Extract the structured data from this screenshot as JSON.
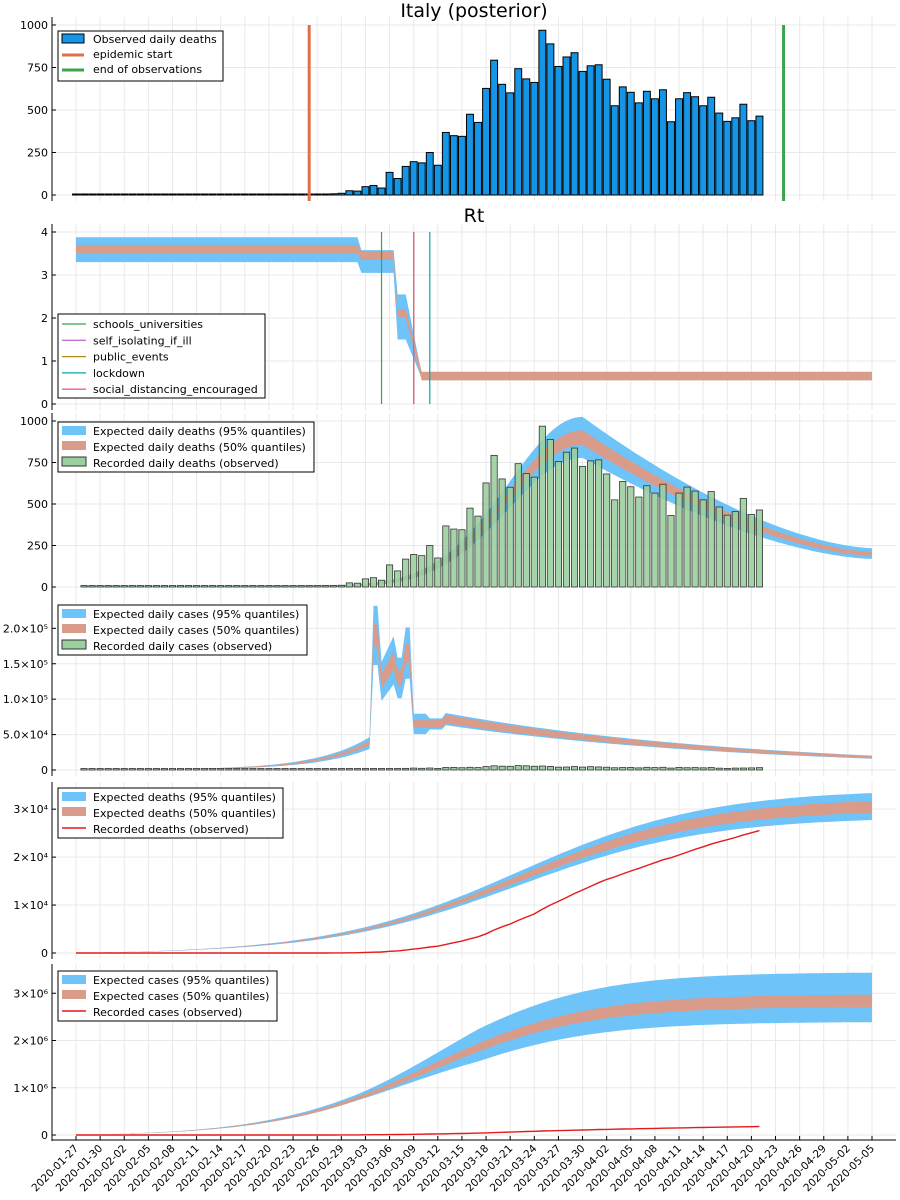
{
  "chart_data": [
    {
      "type": "bar",
      "title": "Italy (posterior)",
      "ylim": [
        0,
        1000
      ],
      "yticks": [
        0,
        250,
        500,
        750,
        1000
      ],
      "ytick_labels": [
        "0",
        "250",
        "500",
        "750",
        "1000"
      ],
      "grid": true,
      "legend_position": "top-left",
      "legend": [
        "Observed daily deaths",
        "epidemic start",
        "end of observations"
      ],
      "x_start": "2020-01-27",
      "series": [
        {
          "name": "Observed daily deaths",
          "values": [
            0,
            0,
            0,
            0,
            0,
            0,
            0,
            0,
            0,
            0,
            0,
            0,
            0,
            0,
            0,
            0,
            0,
            0,
            0,
            0,
            0,
            0,
            0,
            0,
            0,
            0,
            0,
            0,
            0,
            1,
            2,
            1,
            7,
            10,
            25,
            23,
            49,
            56,
            41,
            133,
            97,
            168,
            196,
            189,
            250,
            175,
            368,
            349,
            345,
            475,
            427,
            627,
            793,
            651,
            601,
            743,
            683,
            662,
            969,
            889,
            756,
            812,
            837,
            727,
            760,
            766,
            681,
            525,
            636,
            604,
            542,
            610,
            566,
            619,
            431,
            566,
            602,
            578,
            525,
            575,
            482,
            433,
            454,
            534,
            437,
            464
          ]
        },
        {
          "name": "epidemic start",
          "date": "2020-02-25"
        },
        {
          "name": "end of observations",
          "date": "2020-04-24"
        }
      ]
    },
    {
      "type": "line",
      "title": "Rt",
      "ylim": [
        0,
        4
      ],
      "yticks": [
        0,
        1,
        2,
        3,
        4
      ],
      "ytick_labels": [
        "0",
        "1",
        "2",
        "3",
        "4"
      ],
      "grid": true,
      "legend_position": "left",
      "interventions": [
        {
          "name": "schools_universities",
          "date": "2020-03-05",
          "color": "#3da44e"
        },
        {
          "name": "self_isolating_if_ill",
          "date": "2020-03-09",
          "color": "#c271d2"
        },
        {
          "name": "public_events",
          "date": "2020-03-09",
          "color": "#ac8d18"
        },
        {
          "name": "lockdown",
          "date": "2020-03-11",
          "color": "#00a9ad"
        },
        {
          "name": "social_distancing_encouraged",
          "date": "2020-03-09",
          "color": "#ed5d92"
        }
      ],
      "rt": {
        "pre": 3.6,
        "pre_lo95": 3.3,
        "pre_hi95": 3.88,
        "post": 0.65,
        "post_lo95": 0.6,
        "post_hi95": 0.7
      }
    },
    {
      "type": "bar",
      "ylim": [
        0,
        1000
      ],
      "yticks": [
        0,
        250,
        500,
        750,
        1000
      ],
      "ytick_labels": [
        "0",
        "250",
        "500",
        "750",
        "1000"
      ],
      "grid": true,
      "legend_position": "top-left",
      "legend": [
        "Expected daily deaths (95% quantiles)",
        "Expected daily deaths (50% quantiles)",
        "Recorded daily deaths (observed)"
      ],
      "expected_peak": {
        "date": "2020-03-30",
        "median": 900,
        "lo95": 770,
        "hi95": 1000
      },
      "expected_end": {
        "date": "2020-05-05",
        "median": 200,
        "lo95": 140,
        "hi95": 270
      }
    },
    {
      "type": "bar",
      "ylim": [
        0,
        240000
      ],
      "yticks": [
        0,
        50000,
        100000,
        150000,
        200000
      ],
      "ytick_labels": [
        "0",
        "5.0×10⁴",
        "1.0×10⁵",
        "1.5×10⁵",
        "2.0×10⁵"
      ],
      "grid": true,
      "legend_position": "top-left",
      "legend": [
        "Expected daily cases (95% quantiles)",
        "Expected daily cases (50% quantiles)",
        "Recorded daily cases (observed)"
      ],
      "cases": [
        0,
        0,
        0,
        0,
        0,
        0,
        0,
        0,
        0,
        0,
        0,
        0,
        0,
        0,
        0,
        0,
        0,
        0,
        0,
        0,
        0,
        0,
        0,
        0,
        0,
        0,
        0,
        0,
        0,
        100,
        200,
        300,
        400,
        600,
        800,
        700,
        1000,
        1200,
        1300,
        2000,
        1500,
        2300,
        2700,
        2400,
        2800,
        2200,
        3500,
        3600,
        3200,
        3800,
        3400,
        4800,
        5900,
        5400,
        5200,
        6200,
        5900,
        5300,
        5600,
        5000,
        4000,
        4200,
        4800,
        4100,
        4700,
        4300,
        3900,
        3200,
        3500,
        3600,
        3000,
        3800,
        3400,
        3800,
        2700,
        3700,
        3200,
        3400,
        3100,
        3500,
        2600,
        2200,
        2700,
        2800,
        3000,
        3300
      ]
    },
    {
      "type": "line",
      "ylim": [
        0,
        34000
      ],
      "yticks": [
        0,
        10000,
        20000,
        30000
      ],
      "ytick_labels": [
        "0",
        "1×10⁴",
        "2×10⁴",
        "3×10⁴"
      ],
      "grid": true,
      "legend_position": "top-left",
      "legend": [
        "Expected deaths (95% quantiles)",
        "Expected deaths (50% quantiles)",
        "Recorded deaths (observed)"
      ],
      "expected_end": {
        "date": "2020-05-05",
        "median": 30500,
        "lo95": 27000,
        "hi95": 33000
      }
    },
    {
      "type": "line",
      "ylim": [
        0,
        3450000
      ],
      "yticks": [
        0,
        1000000,
        2000000,
        3000000
      ],
      "ytick_labels": [
        "0",
        "1×10⁶",
        "2×10⁶",
        "3×10⁶"
      ],
      "grid": true,
      "legend_position": "top-left",
      "legend": [
        "Expected cases (95% quantiles)",
        "Expected cases (50% quantiles)",
        "Recorded cases (observed)"
      ],
      "expected_end": {
        "date": "2020-05-05",
        "median": 2750000,
        "lo95": 2100000,
        "hi95": 3300000
      },
      "xtick_labels": [
        "2020-01-27",
        "2020-01-30",
        "2020-02-02",
        "2020-02-05",
        "2020-02-08",
        "2020-02-11",
        "2020-02-14",
        "2020-02-17",
        "2020-02-20",
        "2020-02-23",
        "2020-02-26",
        "2020-02-29",
        "2020-03-03",
        "2020-03-06",
        "2020-03-09",
        "2020-03-12",
        "2020-03-15",
        "2020-03-18",
        "2020-03-21",
        "2020-03-24",
        "2020-03-27",
        "2020-03-30",
        "2020-04-02",
        "2020-04-05",
        "2020-04-08",
        "2020-04-11",
        "2020-04-14",
        "2020-04-17",
        "2020-04-20",
        "2020-04-23",
        "2020-04-26",
        "2020-04-29",
        "2020-05-02",
        "2020-05-05"
      ]
    }
  ],
  "colors": {
    "band95": "#6ec3f8",
    "band50": "#d99b8a",
    "bar_blue": "#1495e6",
    "bar_green": "#9bcf9f",
    "epidemic_start": "#e26f46",
    "end_obs": "#3da44e",
    "recorded_line": "#e41a1c",
    "grid": "#e9e9e9"
  }
}
